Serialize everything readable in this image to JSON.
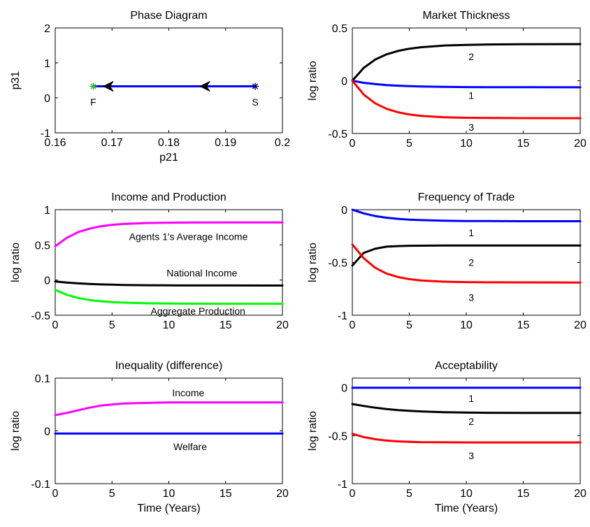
{
  "chart_data": [
    {
      "id": "phase",
      "type": "line",
      "title": "Phase Diagram",
      "xlabel": "p21",
      "ylabel": "p31",
      "xlim": [
        0.16,
        0.2
      ],
      "ylim": [
        -1,
        2
      ],
      "xticks": [
        0.16,
        0.17,
        0.18,
        0.19,
        0.2
      ],
      "xtick_labels": [
        "0.16",
        "0.17",
        "0.18",
        "0.19",
        "0.2"
      ],
      "yticks": [
        -1,
        0,
        1,
        2
      ],
      "ytick_labels": [
        "-1",
        "0",
        "1",
        "2"
      ],
      "series": [
        {
          "color": "#0000ff",
          "x": [
            0.1667,
            0.1952
          ],
          "y": [
            0.33,
            0.33
          ]
        }
      ],
      "arrows": [
        {
          "x": 0.1685,
          "y": 0.33,
          "direction": "left",
          "color": "#000000"
        },
        {
          "x": 0.1855,
          "y": 0.33,
          "direction": "left",
          "color": "#000000"
        }
      ],
      "points": [
        {
          "label": "F",
          "x": 0.1667,
          "y": 0.33,
          "color": "#22bb22",
          "marker": "*",
          "label_dx": 0,
          "label_dy": -0.45
        },
        {
          "label": "S",
          "x": 0.1952,
          "y": 0.33,
          "color": "#000080",
          "marker": "*",
          "label_dx": 0,
          "label_dy": -0.45
        }
      ],
      "annotations": []
    },
    {
      "id": "thickness",
      "type": "line",
      "title": "Market Thickness",
      "xlabel": "",
      "ylabel": "log ratio",
      "xlim": [
        0,
        20
      ],
      "ylim": [
        -0.5,
        0.5
      ],
      "xticks": [
        0,
        5,
        10,
        15,
        20
      ],
      "xtick_labels": [
        "0",
        "5",
        "10",
        "15",
        "20"
      ],
      "yticks": [
        -0.5,
        0,
        0.5
      ],
      "ytick_labels": [
        "-0.5",
        "0",
        "0.5"
      ],
      "series": [
        {
          "color": "#000000",
          "x": [
            0,
            1,
            2,
            3,
            4,
            5,
            6,
            8,
            10,
            12,
            15,
            20
          ],
          "y": [
            0.0,
            0.122,
            0.2,
            0.25,
            0.282,
            0.303,
            0.317,
            0.333,
            0.34,
            0.344,
            0.346,
            0.347
          ]
        },
        {
          "color": "#0000ff",
          "x": [
            0,
            1,
            2,
            3,
            4,
            5,
            6,
            8,
            10,
            12,
            15,
            20
          ],
          "y": [
            0.0,
            -0.02,
            -0.032,
            -0.041,
            -0.047,
            -0.051,
            -0.054,
            -0.058,
            -0.06,
            -0.061,
            -0.061,
            -0.062
          ]
        },
        {
          "color": "#ff0000",
          "x": [
            0,
            1,
            2,
            3,
            4,
            5,
            6,
            8,
            10,
            12,
            15,
            20
          ],
          "y": [
            0.0,
            -0.131,
            -0.214,
            -0.266,
            -0.299,
            -0.32,
            -0.333,
            -0.346,
            -0.351,
            -0.353,
            -0.354,
            -0.355
          ]
        }
      ],
      "arrows": [],
      "points": [],
      "annotations": [
        {
          "text": "2",
          "x": 10.2,
          "y": 0.23
        },
        {
          "text": "1",
          "x": 10.2,
          "y": -0.14
        },
        {
          "text": "3",
          "x": 10.2,
          "y": -0.44
        }
      ]
    },
    {
      "id": "income",
      "type": "line",
      "title": "Income and Production",
      "xlabel": "",
      "ylabel": "log ratio",
      "xlim": [
        0,
        20
      ],
      "ylim": [
        -0.5,
        1
      ],
      "xticks": [
        0,
        5,
        10,
        15,
        20
      ],
      "xtick_labels": [
        "0",
        "5",
        "10",
        "15",
        "20"
      ],
      "yticks": [
        -0.5,
        0,
        0.5,
        1
      ],
      "ytick_labels": [
        "-0.5",
        "0",
        "0.5",
        "1"
      ],
      "series": [
        {
          "color": "#ff00ff",
          "x": [
            0,
            1,
            2,
            3,
            4,
            5,
            6,
            8,
            10,
            12,
            15,
            20
          ],
          "y": [
            0.48,
            0.6,
            0.68,
            0.73,
            0.765,
            0.785,
            0.797,
            0.81,
            0.815,
            0.817,
            0.818,
            0.818
          ]
        },
        {
          "color": "#000000",
          "x": [
            0,
            1,
            2,
            3,
            4,
            5,
            6,
            8,
            10,
            12,
            15,
            20
          ],
          "y": [
            -0.02,
            -0.035,
            -0.047,
            -0.056,
            -0.062,
            -0.066,
            -0.07,
            -0.074,
            -0.076,
            -0.077,
            -0.077,
            -0.078
          ]
        },
        {
          "color": "#00ff00",
          "x": [
            0,
            1,
            2,
            3,
            4,
            5,
            6,
            8,
            10,
            12,
            15,
            20
          ],
          "y": [
            -0.14,
            -0.21,
            -0.255,
            -0.283,
            -0.301,
            -0.313,
            -0.321,
            -0.33,
            -0.334,
            -0.336,
            -0.337,
            -0.337
          ]
        }
      ],
      "arrows": [],
      "points": [],
      "annotations": [
        {
          "text": "Agents 1's Average Income",
          "x": 6.5,
          "y": 0.62
        },
        {
          "text": "National Income",
          "x": 9.8,
          "y": 0.1
        },
        {
          "text": "Aggregate Production",
          "x": 8.4,
          "y": -0.44
        }
      ]
    },
    {
      "id": "frequency",
      "type": "line",
      "title": "Frequency of Trade",
      "xlabel": "",
      "ylabel": "log ratio",
      "xlim": [
        0,
        20
      ],
      "ylim": [
        -1,
        0
      ],
      "xticks": [
        0,
        5,
        10,
        15,
        20
      ],
      "xtick_labels": [
        "0",
        "5",
        "10",
        "15",
        "20"
      ],
      "yticks": [
        -1,
        -0.5,
        0
      ],
      "ytick_labels": [
        "-1",
        "-0.5",
        "0"
      ],
      "series": [
        {
          "color": "#0000ff",
          "x": [
            0,
            1,
            2,
            3,
            4,
            5,
            6,
            8,
            10,
            12,
            15,
            20
          ],
          "y": [
            0.0,
            -0.035,
            -0.06,
            -0.076,
            -0.087,
            -0.094,
            -0.099,
            -0.104,
            -0.107,
            -0.108,
            -0.109,
            -0.109
          ]
        },
        {
          "color": "#000000",
          "x": [
            0,
            1,
            2,
            3,
            4,
            5,
            6,
            8,
            10,
            12,
            15,
            20
          ],
          "y": [
            -0.53,
            -0.41,
            -0.37,
            -0.35,
            -0.345,
            -0.342,
            -0.341,
            -0.34,
            -0.34,
            -0.34,
            -0.34,
            -0.34
          ]
        },
        {
          "color": "#ff0000",
          "x": [
            0,
            1,
            2,
            3,
            4,
            5,
            6,
            8,
            10,
            12,
            15,
            20
          ],
          "y": [
            -0.33,
            -0.46,
            -0.55,
            -0.605,
            -0.638,
            -0.658,
            -0.67,
            -0.682,
            -0.686,
            -0.688,
            -0.689,
            -0.69
          ]
        }
      ],
      "arrows": [],
      "points": [],
      "annotations": [
        {
          "text": "1",
          "x": 10.2,
          "y": -0.22
        },
        {
          "text": "2",
          "x": 10.2,
          "y": -0.5
        },
        {
          "text": "3",
          "x": 10.2,
          "y": -0.83
        }
      ]
    },
    {
      "id": "inequality",
      "type": "line",
      "title": "Inequality (difference)",
      "xlabel": "Time (Years)",
      "ylabel": "log ratio",
      "xlim": [
        0,
        20
      ],
      "ylim": [
        -0.1,
        0.1
      ],
      "xticks": [
        0,
        5,
        10,
        15,
        20
      ],
      "xtick_labels": [
        "0",
        "5",
        "10",
        "15",
        "20"
      ],
      "yticks": [
        -0.1,
        0,
        0.1
      ],
      "ytick_labels": [
        "-0.1",
        "0",
        "0.1"
      ],
      "series": [
        {
          "color": "#ff00ff",
          "x": [
            0,
            1,
            2,
            3,
            4,
            5,
            6,
            8,
            10,
            12,
            15,
            20
          ],
          "y": [
            0.03,
            0.034,
            0.039,
            0.044,
            0.048,
            0.05,
            0.052,
            0.053,
            0.054,
            0.054,
            0.054,
            0.054
          ]
        },
        {
          "color": "#0000ff",
          "x": [
            0,
            20
          ],
          "y": [
            -0.005,
            -0.005
          ]
        }
      ],
      "arrows": [],
      "points": [],
      "annotations": [
        {
          "text": "Income",
          "x": 10.3,
          "y": 0.072
        },
        {
          "text": "Welfare",
          "x": 10.4,
          "y": -0.03
        }
      ]
    },
    {
      "id": "acceptability",
      "type": "line",
      "title": "Acceptability",
      "xlabel": "Time (Years)",
      "ylabel": "log ratio",
      "xlim": [
        0,
        20
      ],
      "ylim": [
        -1,
        0.1
      ],
      "xticks": [
        0,
        5,
        10,
        15,
        20
      ],
      "xtick_labels": [
        "0",
        "5",
        "10",
        "15",
        "20"
      ],
      "yticks": [
        -1,
        -0.5,
        0
      ],
      "ytick_labels": [
        "-1",
        "-0.5",
        "0"
      ],
      "series": [
        {
          "color": "#0000ff",
          "x": [
            0,
            20
          ],
          "y": [
            0.0,
            0.0
          ]
        },
        {
          "color": "#000000",
          "x": [
            0,
            1,
            2,
            3,
            4,
            5,
            6,
            8,
            10,
            12,
            15,
            20
          ],
          "y": [
            -0.17,
            -0.19,
            -0.208,
            -0.222,
            -0.233,
            -0.241,
            -0.247,
            -0.255,
            -0.259,
            -0.261,
            -0.262,
            -0.263
          ]
        },
        {
          "color": "#ff0000",
          "x": [
            0,
            1,
            2,
            3,
            4,
            5,
            6,
            8,
            10,
            12,
            15,
            20
          ],
          "y": [
            -0.48,
            -0.515,
            -0.537,
            -0.551,
            -0.559,
            -0.564,
            -0.567,
            -0.569,
            -0.57,
            -0.57,
            -0.57,
            -0.57
          ]
        }
      ],
      "arrows": [],
      "points": [],
      "annotations": [
        {
          "text": "1",
          "x": 10.2,
          "y": -0.11
        },
        {
          "text": "2",
          "x": 10.2,
          "y": -0.35
        },
        {
          "text": "3",
          "x": 10.2,
          "y": -0.71
        }
      ]
    }
  ]
}
